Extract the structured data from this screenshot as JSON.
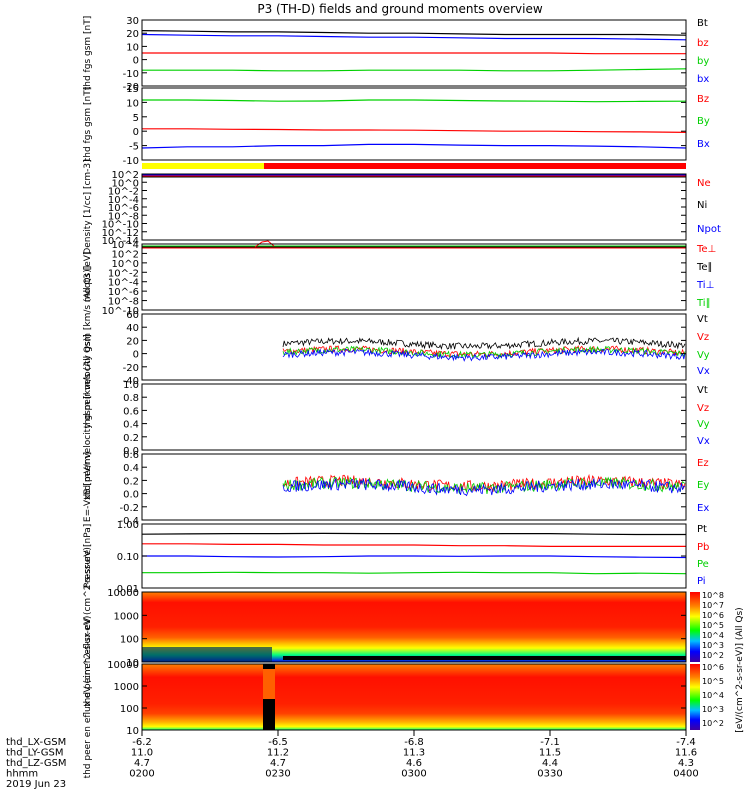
{
  "title": "P3 (TH-D) fields and ground moments overview",
  "colors": {
    "black": "#000000",
    "red": "#ff0000",
    "green": "#00d000",
    "blue": "#0000ff",
    "yellow": "#ffff00"
  },
  "chart_data": [
    {
      "type": "line",
      "ylabel": "thd fgs gsm [nT]",
      "ylim": [
        -20,
        30
      ],
      "yticks": [
        "30",
        "20",
        "10",
        "0",
        "-10",
        "-20"
      ],
      "series": [
        {
          "name": "Bt",
          "color": "#000000",
          "y": [
            22,
            21.5,
            21,
            21,
            20.5,
            20,
            20,
            19.5,
            19,
            19,
            19,
            19,
            18.5
          ]
        },
        {
          "name": "bz",
          "color": "#ff0000",
          "y": [
            5,
            5,
            5,
            5,
            5,
            5,
            5,
            5,
            5,
            5,
            4.5,
            4.5,
            4.5
          ]
        },
        {
          "name": "by",
          "color": "#00d000",
          "y": [
            -8,
            -8,
            -8,
            -8.5,
            -8.5,
            -8,
            -8,
            -8,
            -8.5,
            -8.5,
            -8,
            -7.5,
            -7
          ]
        },
        {
          "name": "bx",
          "color": "#0000ff",
          "y": [
            19,
            18.5,
            18,
            18,
            17.5,
            17,
            17,
            16.5,
            16,
            16,
            16,
            15.5,
            15
          ]
        }
      ]
    },
    {
      "type": "line",
      "ylabel": "thd fgs gsm [nT]",
      "ylim": [
        -15,
        15
      ],
      "yticks": [
        "15",
        "10",
        "5",
        "0",
        "-5",
        "-10"
      ],
      "series": [
        {
          "name": "Bz",
          "color": "#ff0000",
          "y": [
            -2,
            -2,
            -2.2,
            -2.3,
            -2.5,
            -2.5,
            -2.6,
            -2.8,
            -3,
            -3,
            -3.2,
            -3.3,
            -3.5
          ]
        },
        {
          "name": "By",
          "color": "#00d000",
          "y": [
            10,
            10,
            9.8,
            9.5,
            9.6,
            10,
            10,
            9.8,
            9.6,
            9.5,
            9.3,
            9.4,
            9.5
          ]
        },
        {
          "name": "Bx",
          "color": "#0000ff",
          "y": [
            -10,
            -9.5,
            -9.5,
            -9,
            -9,
            -8.5,
            -8.5,
            -8.8,
            -9,
            -9,
            -9.2,
            -9.5,
            -10
          ]
        }
      ]
    },
    {
      "type": "line",
      "ylabel": "Density [1/cc] [cm-3]",
      "scale": "log",
      "yticks": [
        "10^2",
        "10^0",
        "10^-2",
        "10^-4",
        "10^-6",
        "10^-8",
        "10^-10",
        "10^-12",
        "10^-14"
      ],
      "series": [
        {
          "name": "Ne",
          "color": "#ff0000"
        },
        {
          "name": "Ni",
          "color": "#000000"
        },
        {
          "name": "Npot",
          "color": "#0000ff"
        }
      ]
    },
    {
      "type": "line",
      "ylabel": "moqt3 [eV]",
      "scale": "log",
      "yticks": [
        "10^4",
        "10^2",
        "10^0",
        "10^-2",
        "10^-4",
        "10^-6",
        "10^-8",
        "10^-10"
      ],
      "series": [
        {
          "name": "Te⊥",
          "color": "#ff0000"
        },
        {
          "name": "Te∥",
          "color": "#000000"
        },
        {
          "name": "Ti⊥",
          "color": "#0000ff"
        },
        {
          "name": "Ti∥",
          "color": "#00d000"
        }
      ]
    },
    {
      "type": "line",
      "ylabel": "thd peir velocity gsm [km/s (All Qs)]",
      "ylim": [
        -40,
        60
      ],
      "yticks": [
        "60",
        "40",
        "20",
        "0",
        "-20",
        "-40"
      ],
      "series": [
        {
          "name": "Vt",
          "color": "#000000",
          "mean": 15
        },
        {
          "name": "Vz",
          "color": "#ff0000",
          "mean": 3
        },
        {
          "name": "Vy",
          "color": "#00d000",
          "mean": 2
        },
        {
          "name": "Vx",
          "color": "#0000ff",
          "mean": -2
        }
      ]
    },
    {
      "type": "line",
      "ylabel": "thd peer velocity gsm [km/s (All Qs)]",
      "ylim": [
        0,
        1
      ],
      "yticks": [
        "1.0",
        "0.8",
        "0.6",
        "0.4",
        "0.2",
        "0.0"
      ],
      "series": [
        {
          "name": "Vt",
          "color": "#000000"
        },
        {
          "name": "Vz",
          "color": "#ff0000"
        },
        {
          "name": "Vy",
          "color": "#00d000"
        },
        {
          "name": "Vx",
          "color": "#0000ff"
        }
      ]
    },
    {
      "type": "line",
      "ylabel": "E=-VxB [mV/m]",
      "ylim": [
        -0.4,
        0.6
      ],
      "yticks": [
        "0.6",
        "0.4",
        "0.2",
        "0.0",
        "-0.2",
        "-0.4"
      ],
      "series": [
        {
          "name": "Ez",
          "color": "#ff0000",
          "mean": 0.15
        },
        {
          "name": "Ey",
          "color": "#00d000",
          "mean": 0.12
        },
        {
          "name": "Ex",
          "color": "#0000ff",
          "mean": 0.1
        }
      ]
    },
    {
      "type": "line",
      "ylabel": "Pressure [nPa]",
      "scale": "log",
      "ylim": [
        0.01,
        1.0
      ],
      "yticks": [
        "1.00",
        "0.10",
        "0.01"
      ],
      "series": [
        {
          "name": "Pt",
          "color": "#000000",
          "y": [
            0.48,
            0.49,
            0.5,
            0.5,
            0.51,
            0.5,
            0.5,
            0.49,
            0.5,
            0.5,
            0.48,
            0.47,
            0.47
          ]
        },
        {
          "name": "Pb",
          "color": "#ff0000",
          "y": [
            0.24,
            0.24,
            0.23,
            0.23,
            0.22,
            0.22,
            0.22,
            0.21,
            0.21,
            0.2,
            0.2,
            0.2,
            0.2
          ]
        },
        {
          "name": "Pe",
          "color": "#00d000",
          "y": [
            0.03,
            0.03,
            0.031,
            0.03,
            0.03,
            0.029,
            0.03,
            0.031,
            0.03,
            0.03,
            0.028,
            0.029,
            0.028
          ]
        },
        {
          "name": "Pi",
          "color": "#0000ff",
          "y": [
            0.1,
            0.1,
            0.095,
            0.093,
            0.095,
            0.1,
            0.1,
            0.098,
            0.1,
            0.1,
            0.095,
            0.092,
            0.09
          ]
        }
      ]
    },
    {
      "type": "heatmap",
      "ylabel": "thd peir en eflux eV (cm^2-s-sr-eV)",
      "yticks": [
        "10000",
        "1000",
        "100",
        "10"
      ]
    },
    {
      "type": "heatmap",
      "ylabel": "thd peer en eflux eV (cm^2-s-sr-eV)",
      "yticks": [
        "10000",
        "1000",
        "100",
        "10"
      ]
    }
  ],
  "colorbar": {
    "label": "[eV/(cm^2-s-sr-eV)] (All Qs)",
    "ticks_top": [
      "10^8",
      "10^7",
      "10^6",
      "10^5",
      "10^4",
      "10^3",
      "10^2"
    ],
    "ticks_bottom": [
      "10^6",
      "10^5",
      "10^4",
      "10^3",
      "10^2"
    ]
  },
  "xaxis": {
    "row_labels": [
      "thd_LX-GSM",
      "thd_LY-GSM",
      "thd_LZ-GSM",
      "hhmm",
      "2019 Jun 23"
    ],
    "ticks": [
      {
        "values": [
          "-6.2",
          "11.0",
          "4.7",
          "0200"
        ]
      },
      {
        "values": [
          "-6.5",
          "11.2",
          "4.7",
          "0230"
        ]
      },
      {
        "values": [
          "-6.8",
          "11.3",
          "4.6",
          "0300"
        ]
      },
      {
        "values": [
          "-7.1",
          "11.5",
          "4.4",
          "0330"
        ]
      },
      {
        "values": [
          "-7.4",
          "11.6",
          "4.3",
          "0400"
        ]
      }
    ]
  }
}
